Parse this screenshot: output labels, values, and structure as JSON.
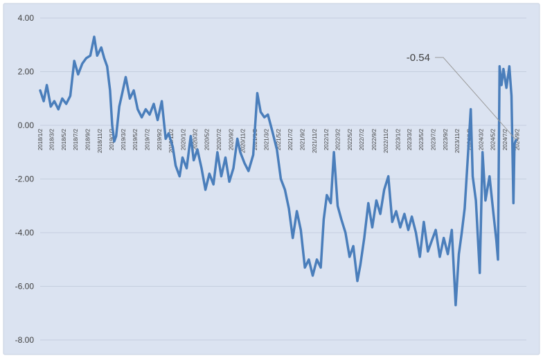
{
  "chart_data": {
    "type": "line",
    "colors": {
      "background": "#dbe3f1",
      "line": "#4a7ebb",
      "grid": "#c4cede",
      "text": "#404040",
      "annotation_leader": "#9a9a9a"
    },
    "ylim": [
      -8,
      4
    ],
    "y_ticks": [
      "4.00",
      "2.00",
      "0.00",
      "-2.00",
      "-4.00",
      "-6.00",
      "-8.00"
    ],
    "y_tick_values": [
      4,
      2,
      0,
      -2,
      -4,
      -6,
      -8
    ],
    "grid": true,
    "legend": "none",
    "x_tick_labels": [
      "2018/1/2",
      "2018/3/2",
      "2018/5/2",
      "2018/7/2",
      "2018/9/2",
      "2018/11/2",
      "2019/1/2",
      "2019/3/2",
      "2019/5/2",
      "2019/7/2",
      "2019/9/2",
      "2019/11/2",
      "2020/1/2",
      "2020/3/2",
      "2020/5/2",
      "2020/7/2",
      "2020/9/2",
      "2020/11/2",
      "2021/1/2",
      "2021/3/2",
      "2021/5/2",
      "2021/7/2",
      "2021/9/2",
      "2021/11/2",
      "2022/1/2",
      "2022/3/2",
      "2022/5/2",
      "2022/7/2",
      "2022/9/2",
      "2022/11/2",
      "2023/1/2",
      "2023/3/2",
      "2023/5/2",
      "2023/7/2",
      "2023/9/2",
      "2023/11/2",
      "2024/1/2",
      "2024/3/2",
      "2024/5/2",
      "2024/7/2",
      "2024/9/2"
    ],
    "x_range": [
      "2018/1/2",
      "2024/10/20"
    ],
    "series": [
      {
        "points": [
          [
            "2018/1/2",
            1.3
          ],
          [
            "2018/1/20",
            0.9
          ],
          [
            "2018/2/5",
            1.5
          ],
          [
            "2018/2/25",
            0.7
          ],
          [
            "2018/3/15",
            0.9
          ],
          [
            "2018/4/5",
            0.6
          ],
          [
            "2018/4/25",
            1.0
          ],
          [
            "2018/5/15",
            0.8
          ],
          [
            "2018/6/5",
            1.1
          ],
          [
            "2018/6/25",
            2.4
          ],
          [
            "2018/7/15",
            1.9
          ],
          [
            "2018/8/5",
            2.3
          ],
          [
            "2018/8/25",
            2.5
          ],
          [
            "2018/9/15",
            2.6
          ],
          [
            "2018/10/5",
            3.3
          ],
          [
            "2018/10/20",
            2.6
          ],
          [
            "2018/11/10",
            2.9
          ],
          [
            "2018/11/25",
            2.5
          ],
          [
            "2018/12/10",
            2.2
          ],
          [
            "2018/12/25",
            1.3
          ],
          [
            "2019/1/5",
            0.0
          ],
          [
            "2019/1/15",
            -0.6
          ],
          [
            "2019/1/25",
            -0.4
          ],
          [
            "2019/2/10",
            0.7
          ],
          [
            "2019/2/25",
            1.2
          ],
          [
            "2019/3/15",
            1.8
          ],
          [
            "2019/4/5",
            1.0
          ],
          [
            "2019/4/25",
            1.3
          ],
          [
            "2019/5/15",
            0.6
          ],
          [
            "2019/6/5",
            0.3
          ],
          [
            "2019/6/25",
            0.6
          ],
          [
            "2019/7/15",
            0.4
          ],
          [
            "2019/8/5",
            0.8
          ],
          [
            "2019/8/25",
            0.2
          ],
          [
            "2019/9/15",
            0.9
          ],
          [
            "2019/10/5",
            -0.5
          ],
          [
            "2019/10/20",
            -0.3
          ],
          [
            "2019/11/10",
            -0.8
          ],
          [
            "2019/11/25",
            -1.5
          ],
          [
            "2019/12/15",
            -1.9
          ],
          [
            "2019/12/30",
            -1.2
          ],
          [
            "2020/1/20",
            -1.6
          ],
          [
            "2020/2/10",
            -0.4
          ],
          [
            "2020/2/25",
            -1.3
          ],
          [
            "2020/3/15",
            -0.9
          ],
          [
            "2020/4/5",
            -1.6
          ],
          [
            "2020/4/25",
            -2.4
          ],
          [
            "2020/5/15",
            -1.8
          ],
          [
            "2020/6/5",
            -2.2
          ],
          [
            "2020/6/25",
            -1.0
          ],
          [
            "2020/7/15",
            -1.9
          ],
          [
            "2020/8/5",
            -1.2
          ],
          [
            "2020/8/25",
            -2.1
          ],
          [
            "2020/9/15",
            -1.6
          ],
          [
            "2020/10/5",
            -0.5
          ],
          [
            "2020/10/20",
            -1.0
          ],
          [
            "2020/11/10",
            -1.4
          ],
          [
            "2020/12/1",
            -1.7
          ],
          [
            "2020/12/25",
            -1.1
          ],
          [
            "2021/1/15",
            1.2
          ],
          [
            "2021/2/1",
            0.5
          ],
          [
            "2021/2/20",
            0.3
          ],
          [
            "2021/3/10",
            0.4
          ],
          [
            "2021/4/1",
            -0.2
          ],
          [
            "2021/4/25",
            -0.9
          ],
          [
            "2021/5/15",
            -2.0
          ],
          [
            "2021/6/5",
            -2.4
          ],
          [
            "2021/6/25",
            -3.1
          ],
          [
            "2021/7/15",
            -4.2
          ],
          [
            "2021/8/5",
            -3.2
          ],
          [
            "2021/8/25",
            -3.9
          ],
          [
            "2021/9/15",
            -5.3
          ],
          [
            "2021/10/5",
            -5.0
          ],
          [
            "2021/10/25",
            -5.6
          ],
          [
            "2021/11/15",
            -5.0
          ],
          [
            "2021/12/5",
            -5.3
          ],
          [
            "2021/12/20",
            -3.5
          ],
          [
            "2022/1/5",
            -2.6
          ],
          [
            "2022/1/25",
            -2.9
          ],
          [
            "2022/2/10",
            -1.0
          ],
          [
            "2022/3/1",
            -3.0
          ],
          [
            "2022/3/20",
            -3.5
          ],
          [
            "2022/4/10",
            -4.0
          ],
          [
            "2022/5/1",
            -4.9
          ],
          [
            "2022/5/20",
            -4.5
          ],
          [
            "2022/6/10",
            -5.8
          ],
          [
            "2022/6/25",
            -5.2
          ],
          [
            "2022/7/15",
            -4.2
          ],
          [
            "2022/8/5",
            -2.9
          ],
          [
            "2022/8/25",
            -3.8
          ],
          [
            "2022/9/15",
            -2.8
          ],
          [
            "2022/10/5",
            -3.3
          ],
          [
            "2022/10/25",
            -2.4
          ],
          [
            "2022/11/15",
            -1.9
          ],
          [
            "2022/12/5",
            -3.6
          ],
          [
            "2022/12/25",
            -3.2
          ],
          [
            "2023/1/15",
            -3.8
          ],
          [
            "2023/2/5",
            -3.3
          ],
          [
            "2023/2/25",
            -3.9
          ],
          [
            "2023/3/15",
            -3.4
          ],
          [
            "2023/4/5",
            -4.0
          ],
          [
            "2023/4/25",
            -4.9
          ],
          [
            "2023/5/15",
            -3.6
          ],
          [
            "2023/6/5",
            -4.7
          ],
          [
            "2023/6/25",
            -4.3
          ],
          [
            "2023/7/15",
            -3.9
          ],
          [
            "2023/8/5",
            -4.9
          ],
          [
            "2023/8/25",
            -4.2
          ],
          [
            "2023/9/15",
            -4.8
          ],
          [
            "2023/10/5",
            -3.9
          ],
          [
            "2023/10/25",
            -6.7
          ],
          [
            "2023/11/10",
            -4.8
          ],
          [
            "2023/11/25",
            -4.0
          ],
          [
            "2023/12/10",
            -3.1
          ],
          [
            "2023/12/25",
            -1.3
          ],
          [
            "2024/1/10",
            0.6
          ],
          [
            "2024/1/20",
            -1.9
          ],
          [
            "2024/2/5",
            -2.8
          ],
          [
            "2024/2/25",
            -5.5
          ],
          [
            "2024/3/10",
            -1.0
          ],
          [
            "2024/3/25",
            -2.8
          ],
          [
            "2024/4/15",
            -1.9
          ],
          [
            "2024/5/5",
            -3.3
          ],
          [
            "2024/5/20",
            -4.3
          ],
          [
            "2024/5/28",
            -5.0
          ],
          [
            "2024/6/5",
            2.2
          ],
          [
            "2024/6/15",
            1.5
          ],
          [
            "2024/6/25",
            2.1
          ],
          [
            "2024/7/10",
            1.4
          ],
          [
            "2024/7/25",
            2.2
          ],
          [
            "2024/8/5",
            1.1
          ],
          [
            "2024/8/15",
            -2.9
          ],
          [
            "2024/8/20",
            -0.7
          ],
          [
            "2024/8/28",
            -0.54
          ]
        ]
      }
    ],
    "annotation": {
      "text": "-0.54",
      "x": "2024/8/28",
      "y": -0.54
    }
  }
}
